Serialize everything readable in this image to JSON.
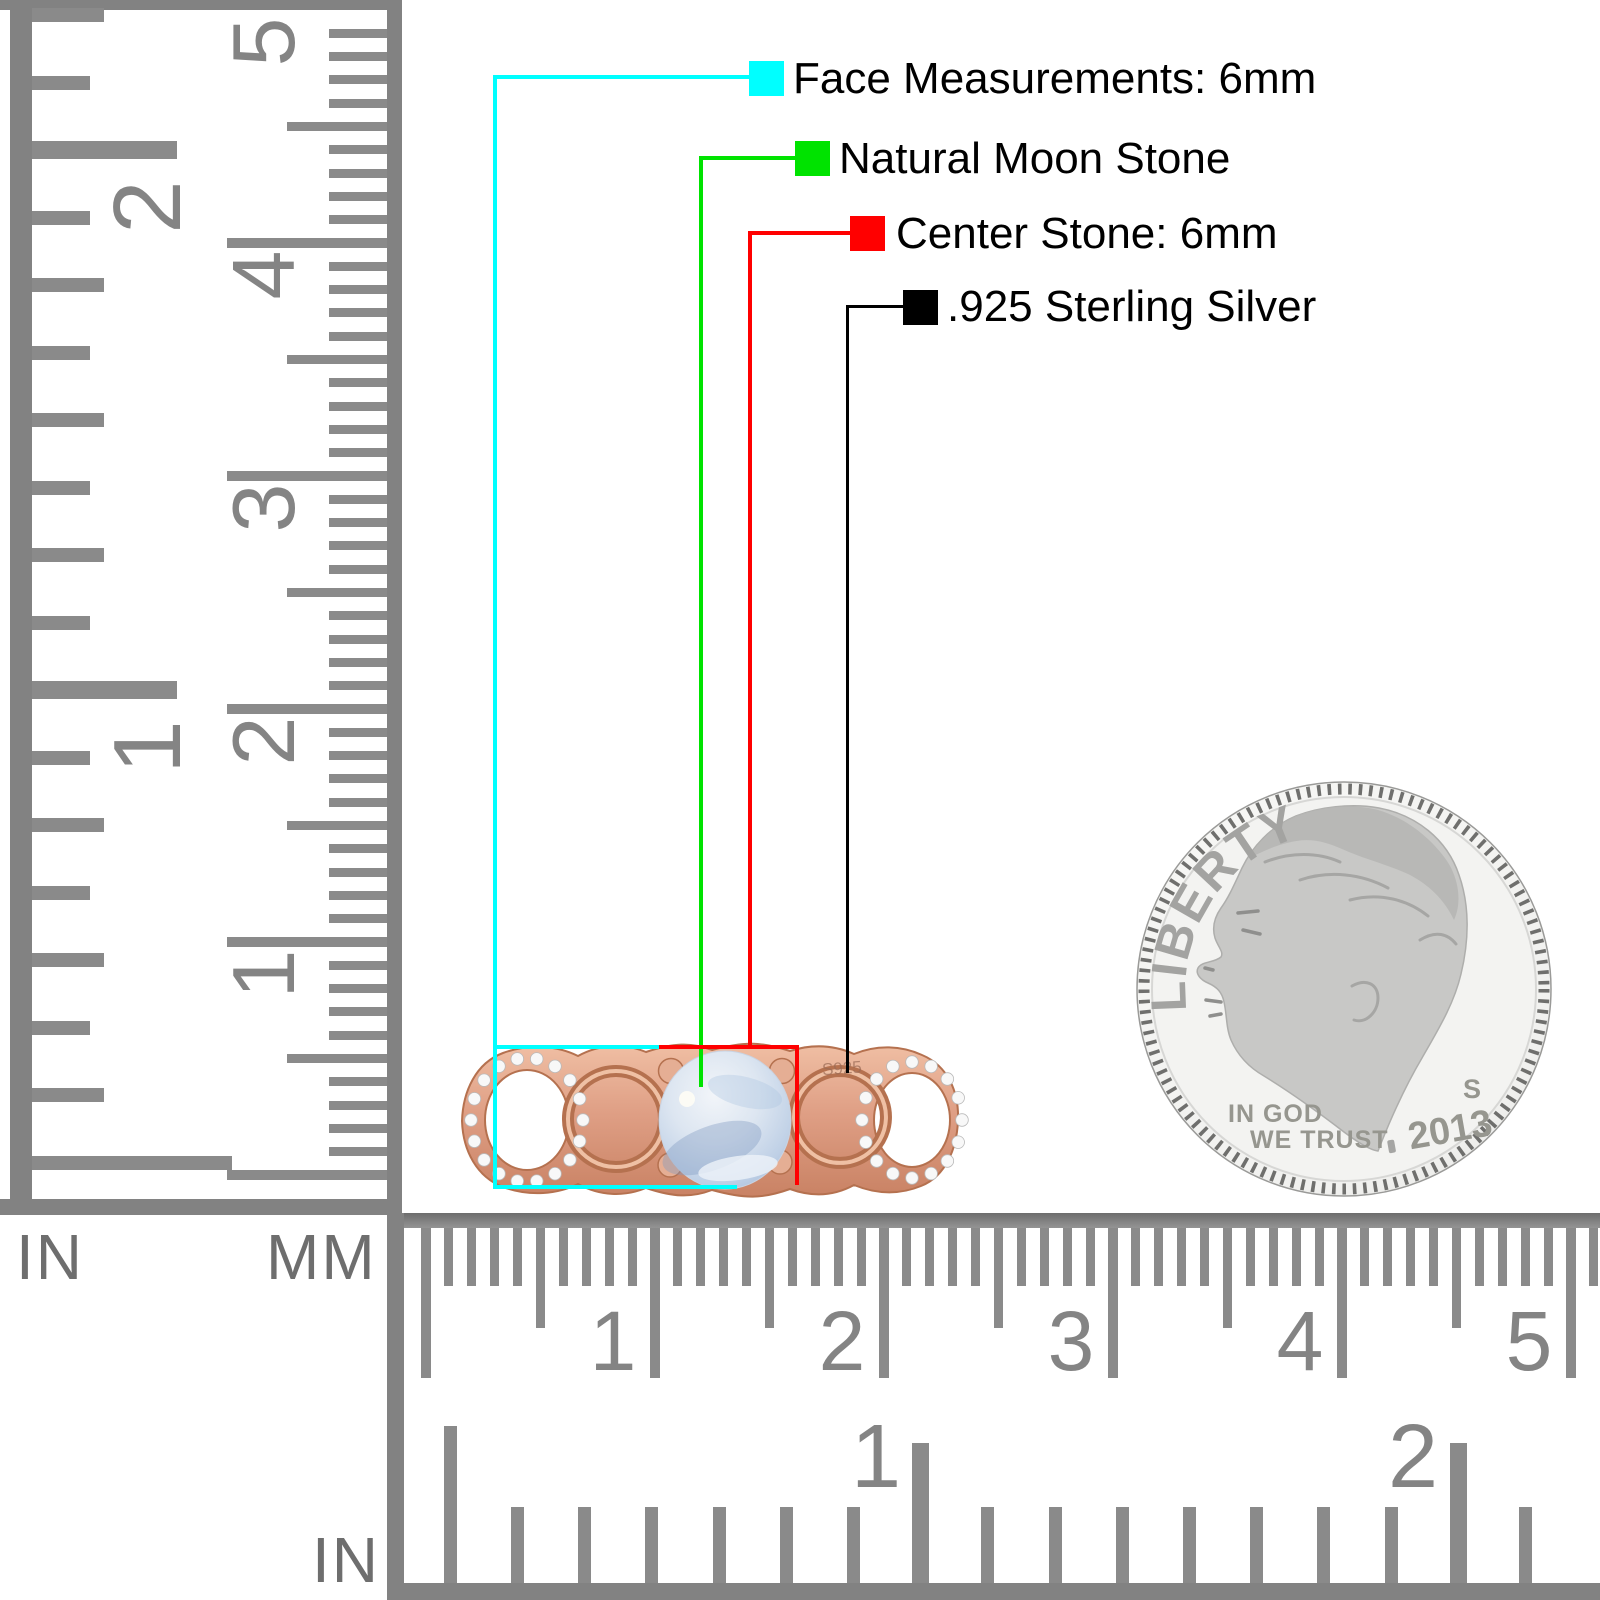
{
  "annotations": [
    {
      "id": "face",
      "color": "#00ffff",
      "label": "Face Measurements: 6mm"
    },
    {
      "id": "moon",
      "color": "#00e300",
      "label": "Natural Moon Stone"
    },
    {
      "id": "center",
      "color": "#ff0000",
      "label": "Center Stone: 6mm"
    },
    {
      "id": "metal",
      "color": "#000000",
      "label": ".925 Sterling Silver"
    }
  ],
  "rulers": {
    "vertical": {
      "in_unit": "IN",
      "mm_unit": "MM",
      "in_numbers": [
        "2",
        "1"
      ],
      "mm_numbers": [
        "5",
        "4",
        "3",
        "2",
        "1"
      ]
    },
    "horizontal": {
      "in_unit": "IN",
      "mm_numbers": [
        "1",
        "2",
        "3",
        "4",
        "5"
      ],
      "in_numbers": [
        "1",
        "2"
      ]
    }
  },
  "coin": {
    "liberty": "LIBERTY",
    "motto_line1": "IN GOD",
    "motto_line2": "WE TRUST",
    "mint_mark": "S",
    "year": "2013"
  },
  "ring": {
    "stamp": "S925"
  }
}
